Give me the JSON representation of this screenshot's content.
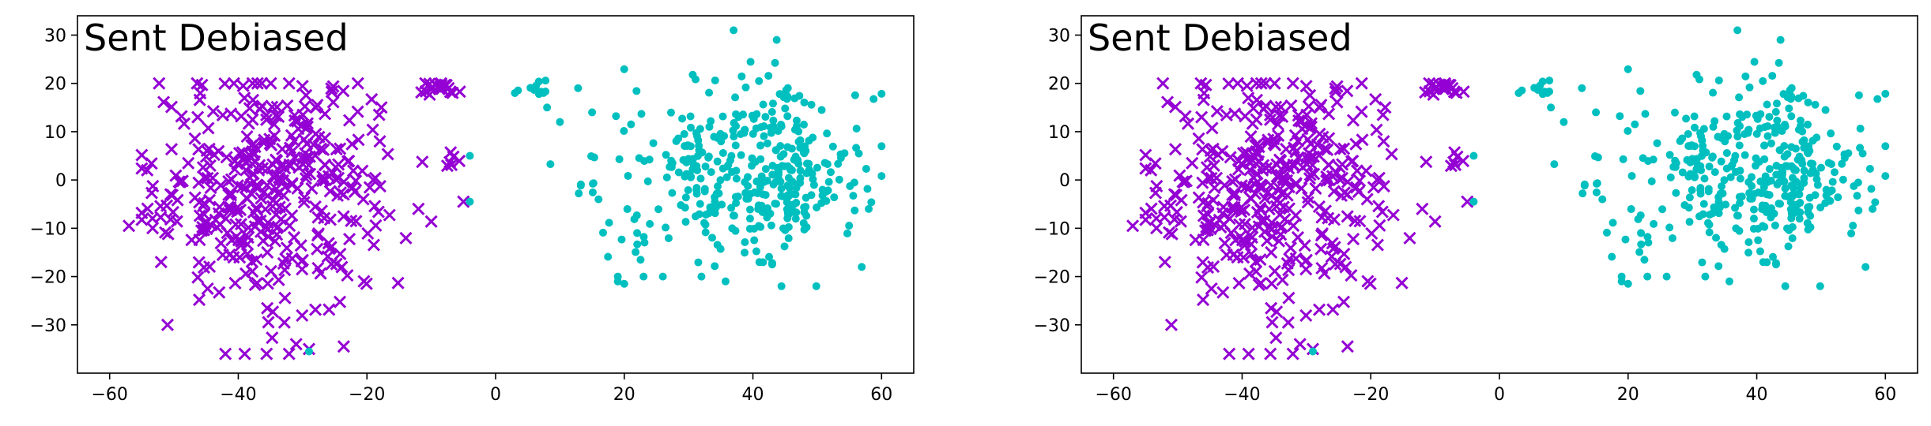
{
  "chart_data": [
    {
      "type": "scatter",
      "title": "Sent Debiased",
      "xlabel": "",
      "ylabel": "",
      "xlim": [
        -65,
        65
      ],
      "ylim": [
        -40,
        34
      ],
      "xticks": [
        -60,
        -40,
        -20,
        0,
        20,
        40,
        60
      ],
      "yticks": [
        -30,
        -20,
        -10,
        0,
        10,
        20,
        30
      ],
      "tick_labels_x": [
        "−60",
        "−40",
        "−20",
        "0",
        "20",
        "40",
        "60"
      ],
      "tick_labels_y": [
        "−30",
        "−20",
        "−10",
        "0",
        "10",
        "20",
        "30"
      ],
      "grid": false,
      "series": [
        {
          "marker": "x",
          "color": "#9400d3",
          "clusters": [
            {
              "cx": -36,
              "cy": -2,
              "sx": 8.5,
              "sy": 12,
              "n": 320
            },
            {
              "cx": -28,
              "cy": 4,
              "sx": 6,
              "sy": 7,
              "n": 60
            },
            {
              "cx": -9,
              "cy": 18.5,
              "sx": 1.6,
              "sy": 0.9,
              "n": 22
            },
            {
              "cx": -53,
              "cy": -7,
              "sx": 2.5,
              "sy": 2,
              "n": 8
            },
            {
              "cx": -7,
              "cy": 3.5,
              "sx": 1.5,
              "sy": 2,
              "n": 6
            }
          ],
          "points": [
            [
              -57,
              -9.5
            ],
            [
              -52,
              -17
            ],
            [
              -51,
              -30
            ],
            [
              -42,
              -36
            ],
            [
              -39,
              -36
            ],
            [
              -31,
              -34
            ],
            [
              -29,
              -35
            ],
            [
              -5,
              -4.5
            ],
            [
              -12,
              -6
            ],
            [
              -18,
              8
            ]
          ]
        },
        {
          "marker": "o",
          "color": "#00bfbf",
          "clusters": [
            {
              "cx": 38,
              "cy": 2,
              "sx": 9.5,
              "sy": 9.5,
              "n": 340
            },
            {
              "cx": 48,
              "cy": 0,
              "sx": 4,
              "sy": 4,
              "n": 40
            },
            {
              "cx": 6.5,
              "cy": 18.5,
              "sx": 1.2,
              "sy": 1.2,
              "n": 10
            },
            {
              "cx": 13.5,
              "cy": -1.5,
              "sx": 1.2,
              "sy": 0.6,
              "n": 6
            }
          ],
          "points": [
            [
              37,
              31
            ],
            [
              19,
              -20
            ],
            [
              19,
              -21
            ],
            [
              20,
              -21.5
            ],
            [
              23,
              -20
            ],
            [
              26,
              -20
            ],
            [
              32,
              -20
            ],
            [
              41,
              -17
            ],
            [
              43,
              -17.5
            ],
            [
              -4,
              5
            ],
            [
              -4,
              -4.5
            ],
            [
              -29,
              -35.5
            ],
            [
              58,
              -6
            ],
            [
              60,
              7
            ],
            [
              10,
              12
            ],
            [
              15,
              14
            ],
            [
              3,
              18
            ],
            [
              8,
              15
            ],
            [
              16,
              -4
            ]
          ]
        }
      ]
    },
    {
      "type": "scatter",
      "title": "Sent Debiased",
      "xlabel": "",
      "ylabel": "",
      "xlim": [
        -65,
        65
      ],
      "ylim": [
        -40,
        34
      ],
      "xticks": [
        -60,
        -40,
        -20,
        0,
        20,
        40,
        60
      ],
      "yticks": [
        -30,
        -20,
        -10,
        0,
        10,
        20,
        30
      ],
      "tick_labels_x": [
        "−60",
        "−40",
        "−20",
        "0",
        "20",
        "40",
        "60"
      ],
      "tick_labels_y": [
        "−30",
        "−20",
        "−10",
        "0",
        "10",
        "20",
        "30"
      ],
      "grid": false,
      "series": [
        {
          "marker": "x",
          "color": "#9400d3",
          "clusters": [
            {
              "cx": -36,
              "cy": -2,
              "sx": 8.5,
              "sy": 12,
              "n": 320
            },
            {
              "cx": -28,
              "cy": 4,
              "sx": 6,
              "sy": 7,
              "n": 60
            },
            {
              "cx": -9,
              "cy": 18.5,
              "sx": 1.6,
              "sy": 0.9,
              "n": 22
            },
            {
              "cx": -53,
              "cy": -7,
              "sx": 2.5,
              "sy": 2,
              "n": 8
            },
            {
              "cx": -7,
              "cy": 3.5,
              "sx": 1.5,
              "sy": 2,
              "n": 6
            }
          ],
          "points": [
            [
              -57,
              -9.5
            ],
            [
              -52,
              -17
            ],
            [
              -51,
              -30
            ],
            [
              -42,
              -36
            ],
            [
              -39,
              -36
            ],
            [
              -31,
              -34
            ],
            [
              -29,
              -35
            ],
            [
              -5,
              -4.5
            ],
            [
              -12,
              -6
            ],
            [
              -18,
              8
            ]
          ]
        },
        {
          "marker": "o",
          "color": "#00bfbf",
          "clusters": [
            {
              "cx": 38,
              "cy": 2,
              "sx": 9.5,
              "sy": 9.5,
              "n": 340
            },
            {
              "cx": 48,
              "cy": 0,
              "sx": 4,
              "sy": 4,
              "n": 40
            },
            {
              "cx": 6.5,
              "cy": 18.5,
              "sx": 1.2,
              "sy": 1.2,
              "n": 10
            },
            {
              "cx": 13.5,
              "cy": -1.5,
              "sx": 1.2,
              "sy": 0.6,
              "n": 6
            }
          ],
          "points": [
            [
              37,
              31
            ],
            [
              19,
              -20
            ],
            [
              19,
              -21
            ],
            [
              20,
              -21.5
            ],
            [
              23,
              -20
            ],
            [
              26,
              -20
            ],
            [
              32,
              -20
            ],
            [
              41,
              -17
            ],
            [
              43,
              -17.5
            ],
            [
              -4,
              5
            ],
            [
              -4,
              -4.5
            ],
            [
              -29,
              -35.5
            ],
            [
              58,
              -6
            ],
            [
              60,
              7
            ],
            [
              10,
              12
            ],
            [
              15,
              14
            ],
            [
              3,
              18
            ],
            [
              8,
              15
            ],
            [
              16,
              -4
            ]
          ]
        }
      ]
    }
  ]
}
